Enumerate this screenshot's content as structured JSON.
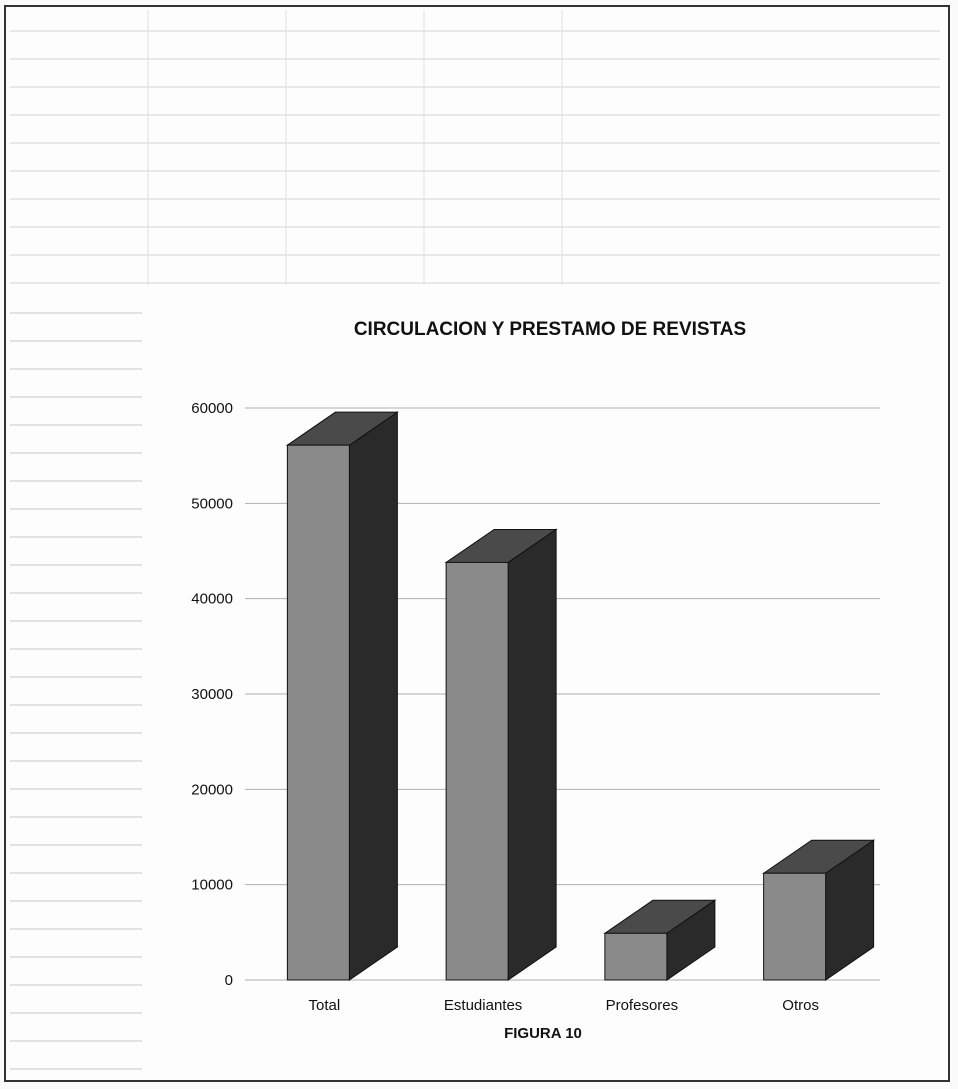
{
  "chart_data": {
    "type": "bar",
    "title": "CIRCULACION Y PRESTAMO DE REVISTAS",
    "categories": [
      "Total",
      "Estudiantes",
      "Profesores",
      "Otros"
    ],
    "values": [
      56100,
      43800,
      4900,
      11200
    ],
    "ylim": [
      0,
      60000
    ],
    "yticks": [
      0,
      10000,
      20000,
      30000,
      40000,
      50000,
      60000
    ],
    "xlabel": "",
    "ylabel": "",
    "grid": true,
    "legend": "none",
    "style": "3d-columns",
    "colors": {
      "front": "#8a8a8a",
      "side": "#2a2a2a",
      "top": "#4a4a4a",
      "grid": "#b0b0b0"
    }
  },
  "caption": "FIGURA 10"
}
